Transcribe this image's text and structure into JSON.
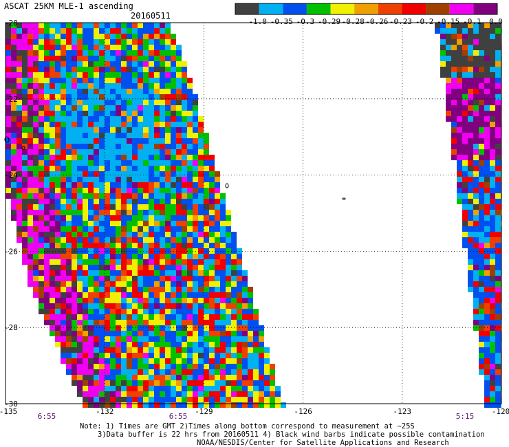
{
  "title": "ASCAT 25KM MLE-1 ascending",
  "date": "20160511",
  "colorbar": {
    "colors": [
      "#404040",
      "#00b0f0",
      "#0050f0",
      "#00c000",
      "#f0f000",
      "#f0a000",
      "#f04000",
      "#f00000",
      "#a04000",
      "#f000f0",
      "#800080"
    ],
    "labels": [
      "-1.0",
      "-0.35",
      "-0.3",
      "-0.29",
      "-0.28",
      "-0.26",
      "-0.23",
      "-0.2",
      "-0.15",
      "-0.1",
      "0.0"
    ]
  },
  "axes": {
    "x_ticks": [
      "-135",
      "-132",
      "-129",
      "-126",
      "-123",
      "-120"
    ],
    "y_ticks": [
      "-20",
      "-22",
      "-24",
      "-26",
      "-28",
      "-30"
    ],
    "x_range": [
      -135,
      -120
    ],
    "y_range": [
      -30,
      -20
    ]
  },
  "times": [
    "6:55",
    "6:55",
    "5:15"
  ],
  "notes": [
    "Note: 1) Times are GMT 2)Times along bottom correspond to measurement at ~25S",
    "3)Data buffer is 22 hrs from 20160511 4) Black wind barbs indicate possible contamination",
    "NOAA/NESDIS/Center for Satellite Applications and Research"
  ]
}
